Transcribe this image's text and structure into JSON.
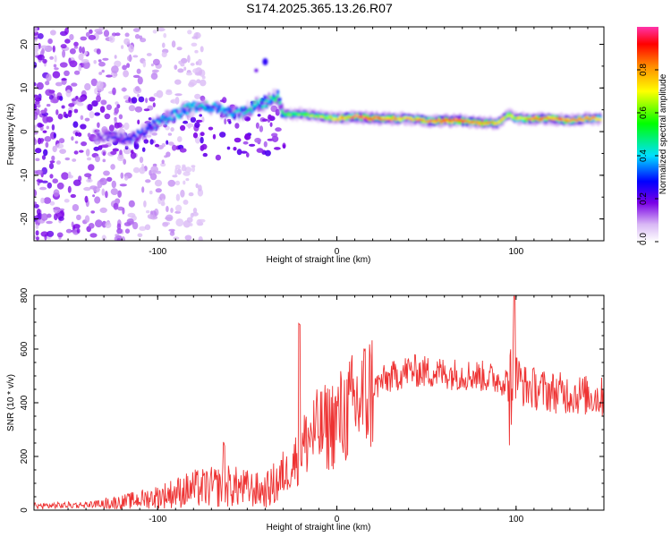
{
  "title": "S174.2025.365.13.26.R07",
  "chart_data": [
    {
      "type": "heatmap",
      "name": "spectrogram",
      "xlabel": "Height of straight line (km)",
      "ylabel": "Frequency (Hz)",
      "xlim": [
        -169,
        149
      ],
      "ylim": [
        -25,
        24
      ],
      "x_ticks": [
        -100,
        0,
        100
      ],
      "y_ticks": [
        20,
        10,
        0,
        -10,
        -20
      ],
      "x_tick_labels": [
        "-100",
        "0",
        "100"
      ],
      "y_tick_labels": [
        "20",
        "10",
        "0",
        "-10",
        "-20"
      ],
      "colorbar": {
        "label": "Normalized spectral amplitude",
        "range": [
          0,
          1
        ],
        "ticks": [
          0.0,
          0.2,
          0.4,
          0.6,
          0.8
        ],
        "tick_labels": [
          "0.0",
          "0.2",
          "0.4",
          "0.6",
          "0.8"
        ]
      },
      "ridge": {
        "x": [
          -135,
          -125,
          -115,
          -105,
          -95,
          -85,
          -75,
          -65,
          -55,
          -45,
          -38,
          -33,
          -30,
          -20,
          -10,
          0,
          10,
          20,
          30,
          40,
          50,
          60,
          70,
          80,
          90,
          96,
          100,
          110,
          120,
          130,
          140,
          148
        ],
        "y": [
          -1,
          -1,
          -2,
          1,
          3,
          5,
          6,
          5,
          4,
          6,
          7,
          8,
          4,
          4,
          3.5,
          3,
          3.5,
          3,
          3,
          3,
          2.5,
          2.5,
          2.5,
          2,
          2,
          4,
          3,
          3,
          3,
          2.5,
          3,
          3
        ],
        "amplitude": [
          0.2,
          0.25,
          0.3,
          0.35,
          0.4,
          0.45,
          0.45,
          0.4,
          0.45,
          0.5,
          0.5,
          0.55,
          0.55,
          0.6,
          0.65,
          0.75,
          0.9,
          0.95,
          0.9,
          0.75,
          0.85,
          0.9,
          0.9,
          0.85,
          0.8,
          0.7,
          0.75,
          0.85,
          0.85,
          0.85,
          0.8,
          0.8
        ]
      }
    },
    {
      "type": "line",
      "name": "snr",
      "xlabel": "Height of straight line (km)",
      "ylabel": "SNR (10 * v/v)",
      "xlim": [
        -169,
        149
      ],
      "ylim": [
        0,
        800
      ],
      "x_ticks": [
        -100,
        0,
        100
      ],
      "y_ticks": [
        0,
        200,
        400,
        600,
        800
      ],
      "x_tick_labels": [
        "-100",
        "0",
        "100"
      ],
      "y_tick_labels": [
        "0",
        "200",
        "400",
        "600",
        "800"
      ],
      "color": "#ee3333",
      "envelope": {
        "x": [
          -169,
          -140,
          -120,
          -100,
          -80,
          -60,
          -40,
          -30,
          -22,
          -15,
          -5,
          5,
          15,
          25,
          40,
          60,
          80,
          95,
          100,
          105,
          120,
          149
        ],
        "y": [
          15,
          20,
          30,
          50,
          80,
          90,
          70,
          120,
          200,
          280,
          310,
          360,
          420,
          480,
          520,
          510,
          500,
          480,
          500,
          460,
          440,
          420
        ]
      },
      "spikes": [
        {
          "x": -21,
          "y": 700
        },
        {
          "x": 99,
          "y": 800
        },
        {
          "x": -63,
          "y": 255
        }
      ]
    }
  ]
}
